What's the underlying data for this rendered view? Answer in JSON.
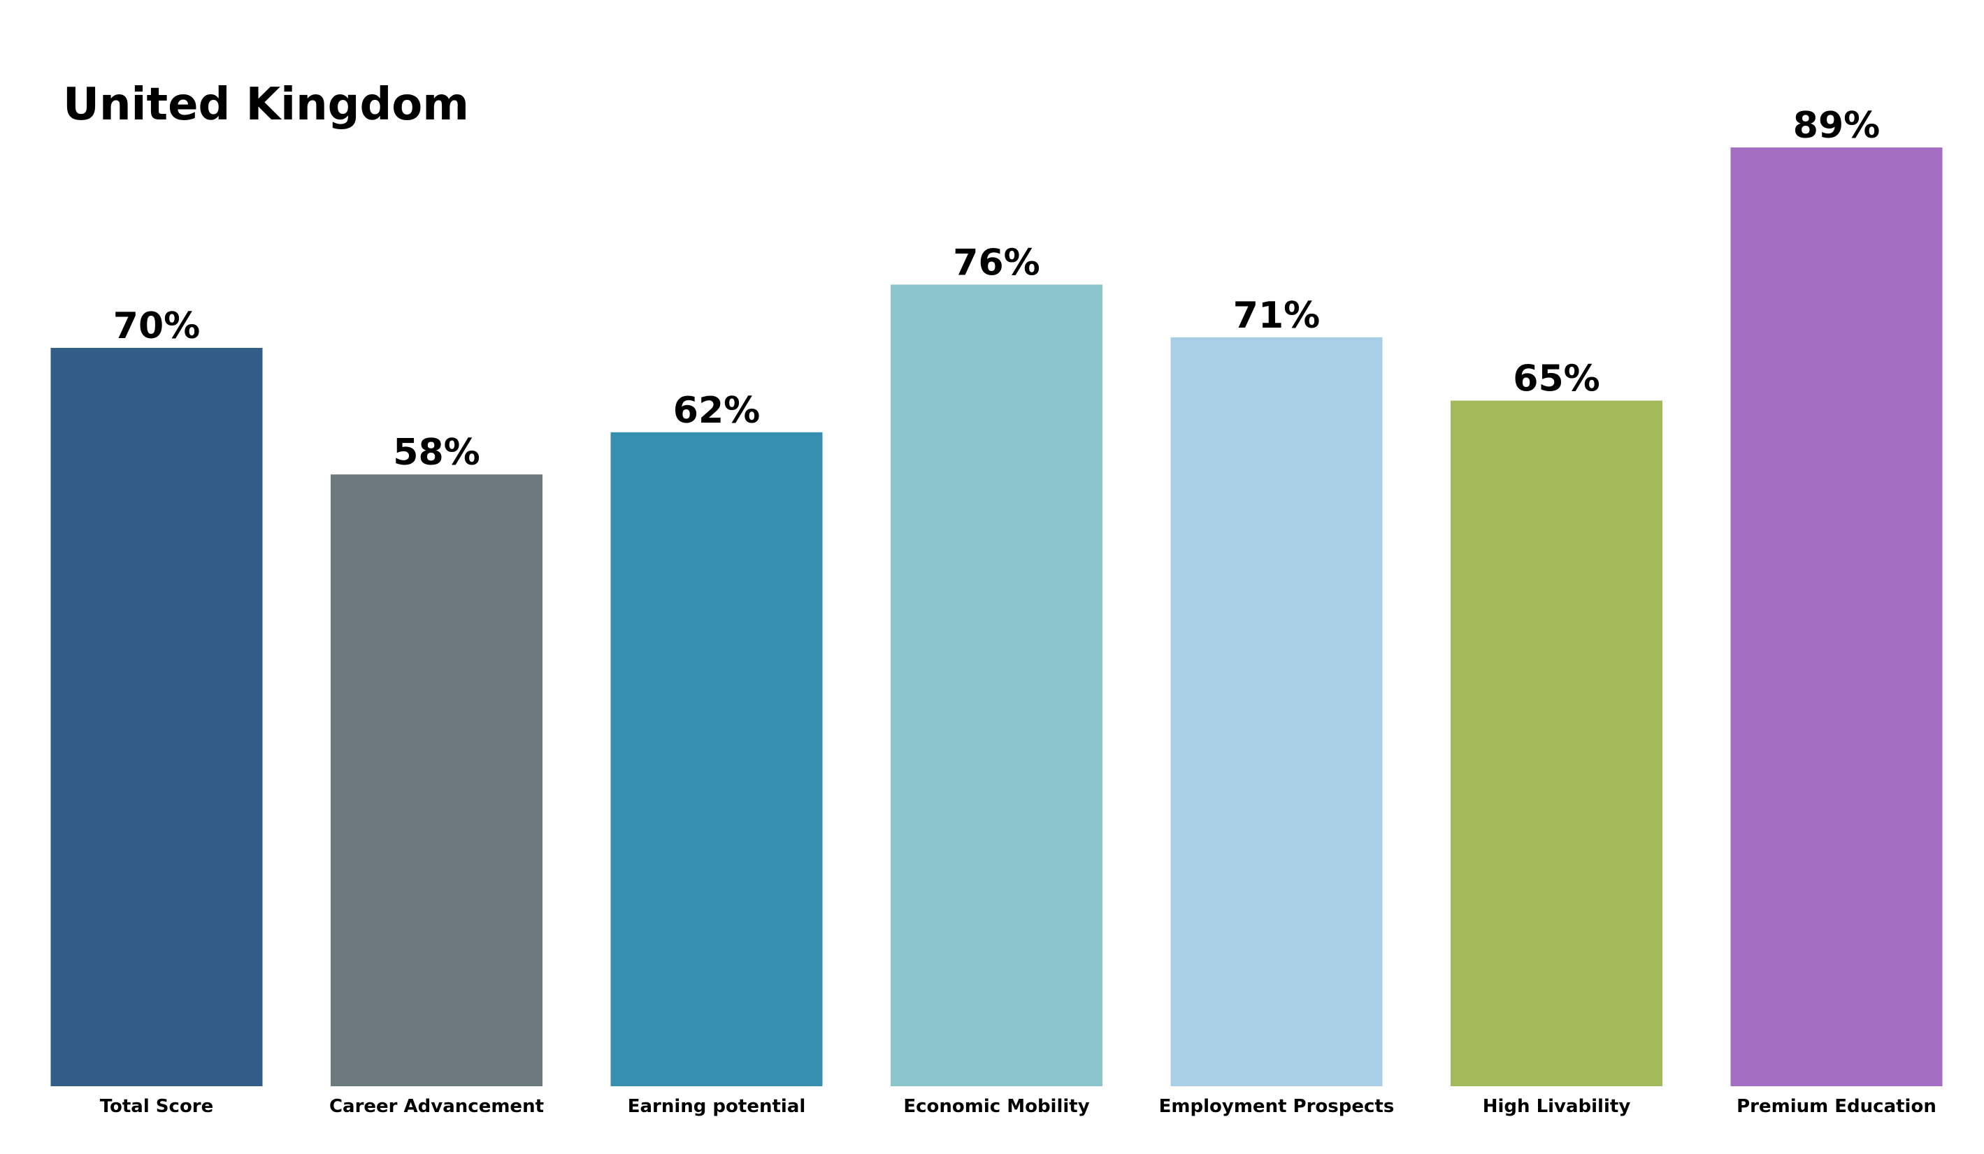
{
  "chart_data": {
    "type": "bar",
    "title": "United Kingdom",
    "xlabel": "",
    "ylabel": "",
    "ylim": [
      0,
      100
    ],
    "grid": false,
    "value_suffix": "%",
    "categories": [
      "Total Score",
      "Career Advancement",
      "Earning potential",
      "Economic Mobility",
      "Employment Prospects",
      "High Livability",
      "Premium Education"
    ],
    "values": [
      70,
      58,
      62,
      76,
      71,
      65,
      89
    ],
    "colors": [
      "#325d89",
      "#6c797f",
      "#378fb0",
      "#8cc6cd",
      "#a8cfe6",
      "#a3ba5a",
      "#a46ec2"
    ]
  }
}
